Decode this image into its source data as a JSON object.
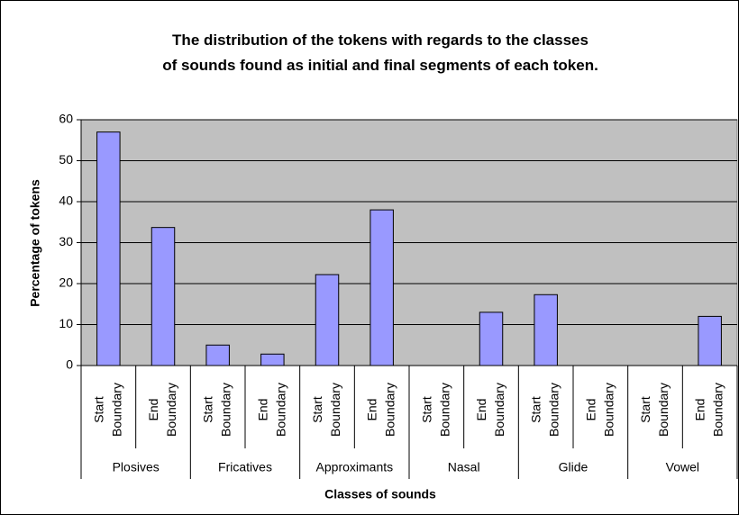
{
  "chart_data": {
    "type": "bar",
    "title": "The distribution of the tokens with regards to the classes of sounds found as initial and final segments of each token.",
    "x_label": "Classes of sounds",
    "y_label": "Percentage of tokens",
    "groups": [
      "Plosives",
      "Fricatives",
      "Approximants",
      "Nasal",
      "Glide",
      "Vowel"
    ],
    "categories": [
      "Start Boundary",
      "End Boundary",
      "Start Boundary",
      "End Boundary",
      "Start Boundary",
      "End Boundary",
      "Start Boundary",
      "End Boundary",
      "Start Boundary",
      "End Boundary",
      "Start Boundary",
      "End Boundary"
    ],
    "values": [
      57,
      33.7,
      5,
      2.8,
      22.2,
      38,
      0,
      13,
      17.3,
      0,
      0,
      12
    ],
    "color": "#9999ff",
    "ylim": [
      0,
      60
    ],
    "yticks": [
      0,
      10,
      20,
      30,
      40,
      50,
      60
    ],
    "grid": true
  }
}
